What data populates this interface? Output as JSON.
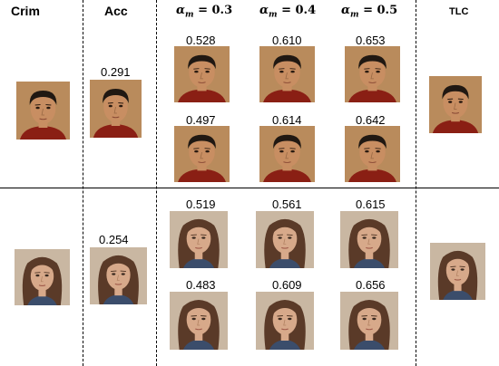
{
  "headers": {
    "crim": "Crim",
    "acc": "Acc",
    "am03": "= 0.3",
    "am04": "= 0.4",
    "am05": "= 0.5",
    "alpha_symbol": "α",
    "alpha_sub": "m",
    "tlc": "TLC"
  },
  "row1": {
    "acc_score": "0.291",
    "top_scores": [
      "0.528",
      "0.610",
      "0.653"
    ],
    "bottom_scores": [
      "0.497",
      "0.614",
      "0.642"
    ]
  },
  "row2": {
    "acc_score": "0.254",
    "top_scores": [
      "0.519",
      "0.561",
      "0.615"
    ],
    "bottom_scores": [
      "0.483",
      "0.609",
      "0.656"
    ]
  },
  "colors": {
    "male_bg": "#b98b5c",
    "male_skin": "#c88e62",
    "male_hair": "#201812",
    "male_shirt": "#8a1f14",
    "female_bg": "#c9b7a2",
    "female_skin": "#d7a98a",
    "female_hair": "#5a3a28",
    "female_shirt": "#3b4d6b"
  }
}
